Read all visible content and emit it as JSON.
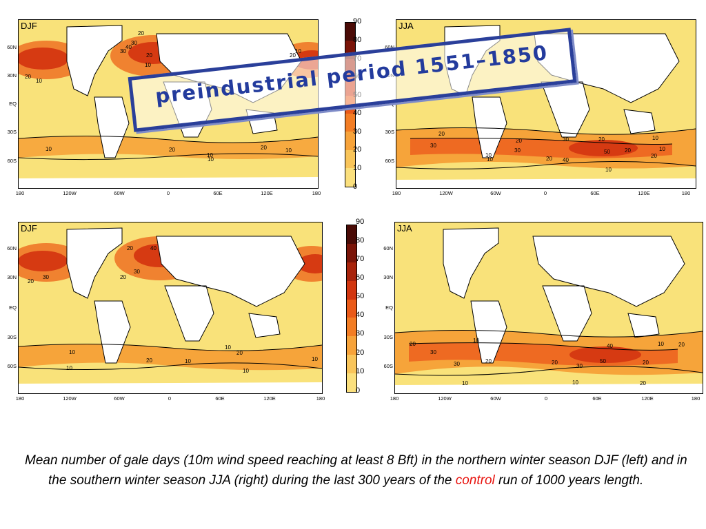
{
  "panels": [
    {
      "label": "DJF",
      "row": "top",
      "col": "left",
      "contours": [
        "20",
        "30",
        "40",
        "30",
        "20",
        "10",
        "10",
        "20",
        "10",
        "10",
        "20",
        "10",
        "20",
        "10",
        "10",
        "20"
      ]
    },
    {
      "label": "JJA",
      "row": "top",
      "col": "right",
      "contours": [
        "20",
        "30",
        "10",
        "20",
        "30",
        "40",
        "50",
        "10",
        "20",
        "30",
        "20",
        "10",
        "20",
        "10",
        "10",
        "20"
      ]
    },
    {
      "label": "DJF",
      "row": "bottom",
      "col": "left",
      "contours": [
        "20",
        "30",
        "40",
        "20",
        "30",
        "20",
        "10",
        "10",
        "20",
        "10",
        "10",
        "20",
        "10",
        "10"
      ]
    },
    {
      "label": "JJA",
      "row": "bottom",
      "col": "right",
      "contours": [
        "20",
        "30",
        "10",
        "20",
        "30",
        "20",
        "40",
        "50",
        "10",
        "20",
        "30",
        "20",
        "10",
        "20",
        "10"
      ]
    }
  ],
  "lat_ticks": [
    "60N",
    "30N",
    "EQ",
    "30S",
    "60S"
  ],
  "lon_ticks": [
    "180",
    "120W",
    "60W",
    "0",
    "60E",
    "120E",
    "180"
  ],
  "colorbar": {
    "ticks": [
      "90",
      "80",
      "70",
      "60",
      "50",
      "40",
      "30",
      "20",
      "10",
      "0"
    ],
    "colors": [
      "#4a0b06",
      "#7a1408",
      "#a8230b",
      "#d2360f",
      "#ea5a18",
      "#f37d24",
      "#f7a33a",
      "#f9c55a",
      "#fbe07d"
    ]
  },
  "stamp": {
    "text": "preindustrial period 1551–1850"
  },
  "caption": {
    "part1": "Mean number of gale days (10m wind speed reaching at least 8 Bft) in the northern winter season DJF (left) and in the southern winter season JJA (right) during the last 300 years of the ",
    "highlight": "control",
    "part2": " run of 1000 years length."
  }
}
